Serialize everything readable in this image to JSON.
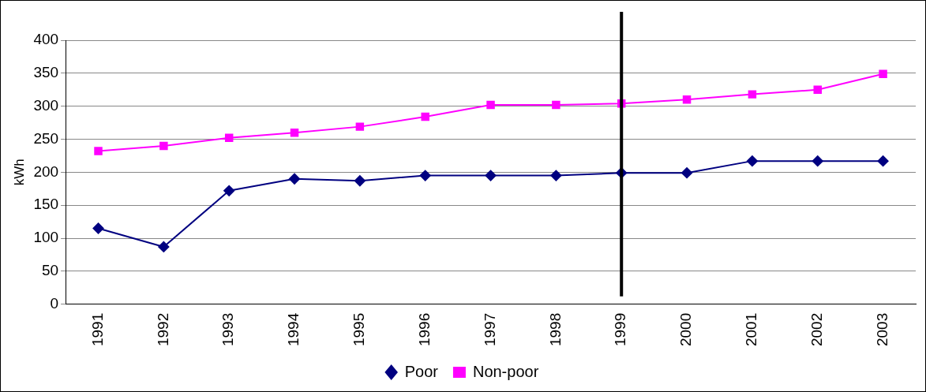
{
  "chart_data": {
    "type": "line",
    "ylabel": "kWh",
    "categories": [
      "1991",
      "1992",
      "1993",
      "1994",
      "1995",
      "1996",
      "1997",
      "1998",
      "1999",
      "2000",
      "2001",
      "2002",
      "2003"
    ],
    "series": [
      {
        "name": "Poor",
        "color": "#000080",
        "marker": "diamond",
        "values": [
          115,
          87,
          172,
          190,
          187,
          195,
          195,
          195,
          199,
          199,
          217,
          217,
          217
        ]
      },
      {
        "name": "Non-poor",
        "color": "#ff00ff",
        "marker": "square",
        "values": [
          232,
          240,
          252,
          260,
          269,
          284,
          302,
          302,
          304,
          310,
          318,
          325,
          349
        ]
      }
    ],
    "ylim": [
      0,
      400
    ],
    "yticks": [
      0,
      50,
      100,
      150,
      200,
      250,
      300,
      350,
      400
    ],
    "grid": "y",
    "legend": "bottom",
    "line_style": "solid",
    "ref_lines": [
      {
        "axis": "x",
        "value": "1999",
        "color": "#000000"
      }
    ]
  }
}
